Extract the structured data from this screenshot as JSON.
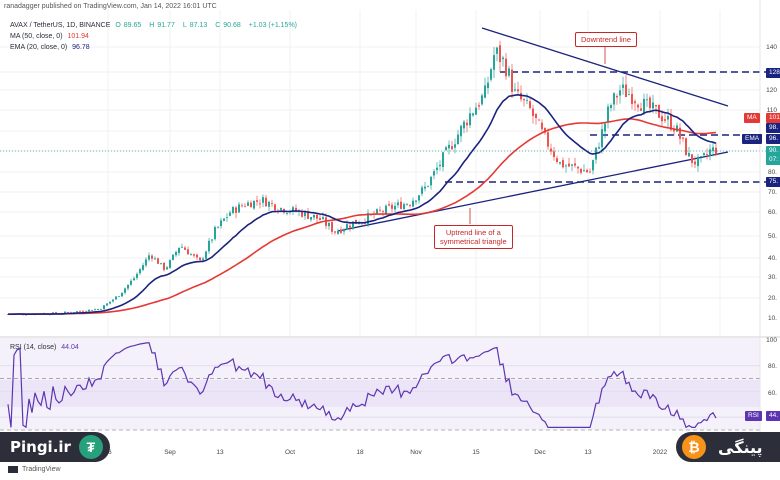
{
  "header": {
    "published": "ranadagger published on TradingView.com, Jan 14, 2022 16:01 UTC",
    "symbol": "AVAX / TetherUS, 1D, BINANCE",
    "ohlc": [
      {
        "key": "O",
        "value": "89.65"
      },
      {
        "key": "H",
        "value": "91.77"
      },
      {
        "key": "L",
        "value": "87.13"
      },
      {
        "key": "C",
        "value": "90.68"
      }
    ],
    "change": "+1.03 (+1.15%)",
    "ma_label": "MA (50, close, 0)",
    "ma_value": "101.94",
    "ema_label": "EMA (20, close, 0)",
    "ema_value": "96.78",
    "rsi_label": "RSI (14, close)",
    "rsi_value": "44.04"
  },
  "annotations": {
    "downtrend": "Downtrend line",
    "uptrend_1": "Uptrend line of a",
    "uptrend_2": "symmetrical triangle"
  },
  "price_axis_labels": [
    "140",
    "120",
    "110",
    "100",
    "90.",
    "80.",
    "70.",
    "60.",
    "50.",
    "40.",
    "30.",
    "20.",
    "10."
  ],
  "price_tags": {
    "r128": "128",
    "ma": "101",
    "r98": "98.",
    "ema": "96.",
    "last": "90.",
    "cd": "07:",
    "r75": "75."
  },
  "indicator_tags": {
    "ma": "MA",
    "ema": "EMA",
    "rsi": "RSI",
    "rsi_val": "44."
  },
  "rsi_axis_labels": [
    "100",
    "80.",
    "60.",
    "40."
  ],
  "time_axis": [
    "16",
    "Sep",
    "13",
    "Oct",
    "18",
    "Nov",
    "15",
    "Dec",
    "13",
    "2022",
    "17"
  ],
  "colors": {
    "up": "#26a69a",
    "down": "#ef5350",
    "ma": "#e53935",
    "ema": "#1a237e",
    "rsi": "#5e35b1",
    "levels": "#1a237e"
  },
  "branding": {
    "left": "Pingi.ir",
    "left_icon": "tether-icon",
    "right": "پینگی",
    "right_icon": "bitcoin-icon",
    "tv": "TradingView"
  },
  "chart_data": {
    "type": "candlestick",
    "symbol": "AVAX / TetherUS",
    "interval": "1D",
    "x": [
      "Aug 16",
      "Sep",
      "Sep 13",
      "Oct",
      "Oct 18",
      "Nov",
      "Nov 15",
      "Dec",
      "Dec 13",
      "2022",
      "Jan 17"
    ],
    "close_approx": [
      12,
      18,
      35,
      60,
      52,
      68,
      135,
      100,
      90,
      112,
      90.68
    ],
    "series": [
      {
        "name": "MA (50, close, 0)",
        "last": 101.94
      },
      {
        "name": "EMA (20, close, 0)",
        "last": 96.78
      },
      {
        "name": "RSI (14, close)",
        "last": 44.04
      }
    ],
    "horizontal_levels": [
      128,
      98,
      75
    ],
    "ylim": [
      10,
      145
    ],
    "rsi_ylim": [
      30,
      100
    ],
    "rsi_bands": [
      70,
      30
    ]
  }
}
